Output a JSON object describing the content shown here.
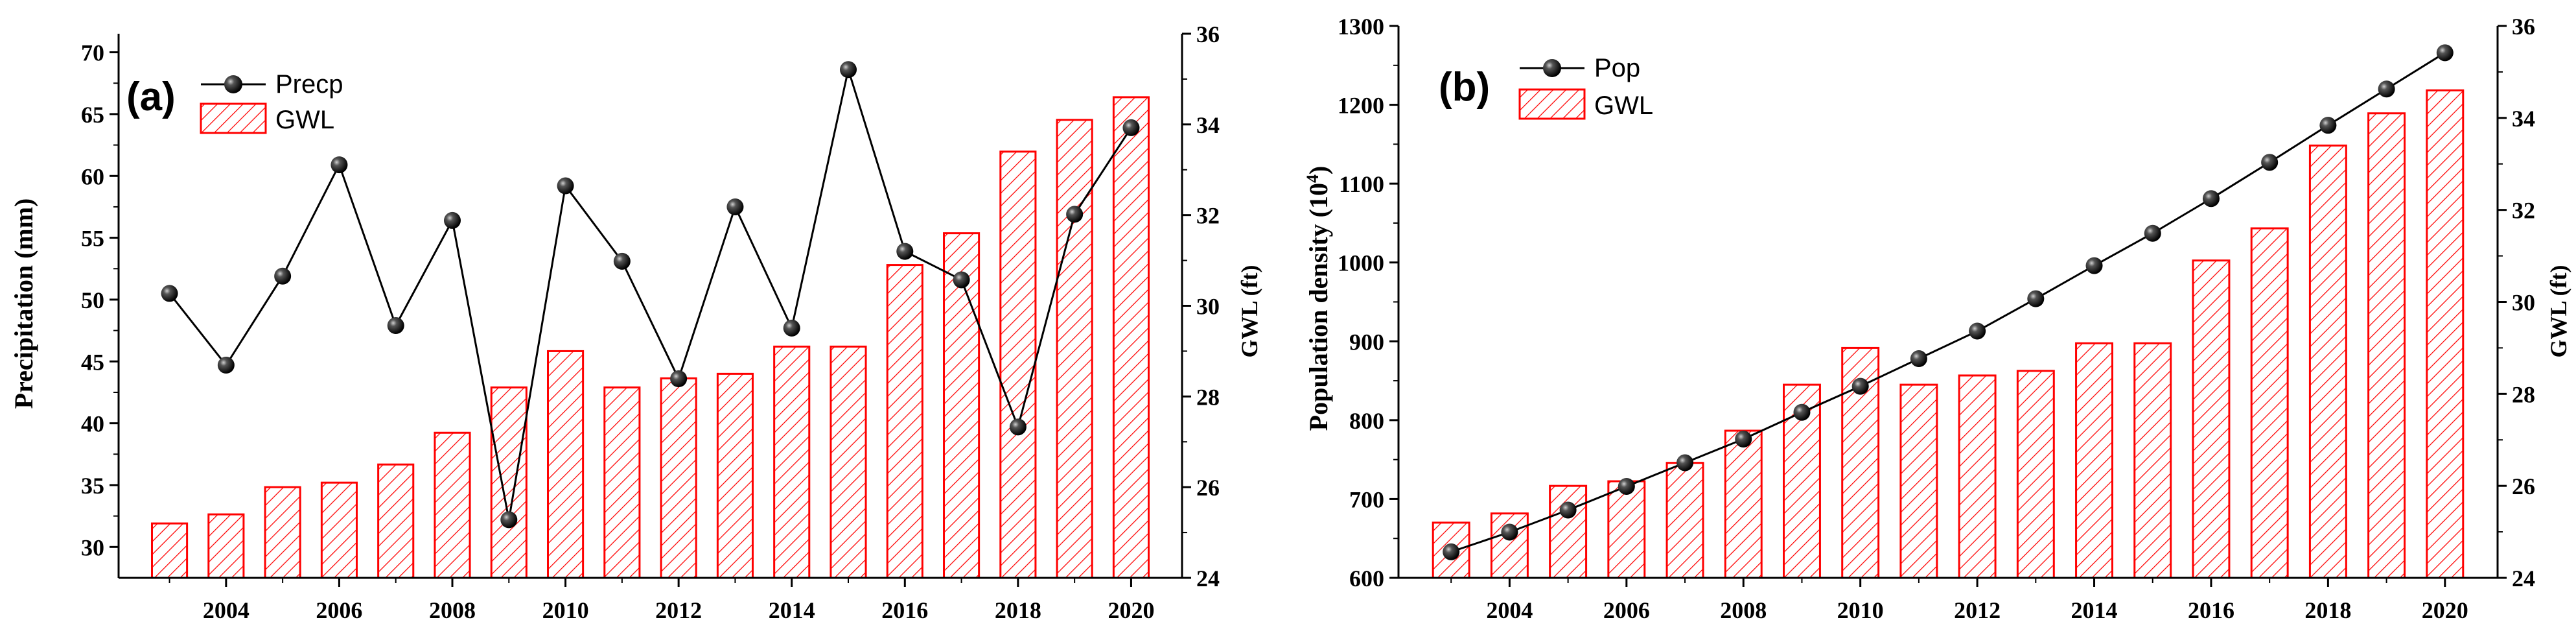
{
  "chart_data": [
    {
      "panel_label": "(a)",
      "type": "bar+line",
      "years": [
        2003,
        2004,
        2005,
        2006,
        2007,
        2008,
        2009,
        2010,
        2011,
        2012,
        2013,
        2014,
        2015,
        2016,
        2017,
        2018,
        2019,
        2020
      ],
      "line_series": {
        "name": "Precp",
        "values": [
          50.5,
          44.7,
          51.9,
          60.9,
          47.9,
          56.4,
          32.2,
          59.2,
          53.1,
          43.6,
          57.5,
          47.7,
          68.6,
          53.9,
          51.6,
          39.7,
          56.9,
          63.9
        ]
      },
      "bar_series": {
        "name": "GWL",
        "values": [
          25.2,
          25.4,
          26.0,
          26.1,
          26.5,
          27.2,
          28.2,
          29.0,
          28.2,
          28.4,
          28.5,
          29.1,
          29.1,
          30.9,
          31.6,
          33.4,
          34.1,
          34.6
        ]
      },
      "ylabel_left": "Precipitation (mm)",
      "ylabel_right": "GWL (ft)",
      "ylim_left": [
        27.5,
        71.5
      ],
      "ylim_right": [
        24,
        36
      ],
      "yticks_left": [
        "30",
        "35",
        "40",
        "45",
        "50",
        "55",
        "60",
        "65",
        "70"
      ],
      "yticks_right": [
        "24",
        "26",
        "28",
        "30",
        "32",
        "34",
        "36"
      ],
      "xticks": [
        "2004",
        "2006",
        "2008",
        "2010",
        "2012",
        "2014",
        "2016",
        "2018",
        "2020"
      ],
      "xlim": [
        2002.1,
        2020.9
      ]
    },
    {
      "panel_label": "(b)",
      "type": "bar+line",
      "years": [
        2003,
        2004,
        2005,
        2006,
        2007,
        2008,
        2009,
        2010,
        2011,
        2012,
        2013,
        2014,
        2015,
        2016,
        2017,
        2018,
        2019,
        2020
      ],
      "line_series": {
        "name": "Pop",
        "values": [
          633,
          658,
          686,
          716,
          746,
          776,
          810,
          843,
          878,
          913,
          954,
          996,
          1037,
          1081,
          1127,
          1174,
          1220,
          1266
        ]
      },
      "bar_series": {
        "name": "GWL",
        "values": [
          25.2,
          25.4,
          26.0,
          26.1,
          26.5,
          27.2,
          28.2,
          29.0,
          28.2,
          28.4,
          28.5,
          29.1,
          29.1,
          30.9,
          31.6,
          33.4,
          34.1,
          34.6
        ]
      },
      "ylabel_left": "Population density (10",
      "ylabel_left_sup": "4",
      "ylabel_left_end": ")",
      "ylabel_right": "GWL (ft)",
      "ylim_left": [
        600,
        1300
      ],
      "ylim_right": [
        24,
        36
      ],
      "yticks_left": [
        "600",
        "700",
        "800",
        "900",
        "1000",
        "1100",
        "1200",
        "1300"
      ],
      "yticks_right": [
        "24",
        "26",
        "28",
        "30",
        "32",
        "34",
        "36"
      ],
      "xticks": [
        "2004",
        "2006",
        "2008",
        "2010",
        "2012",
        "2014",
        "2016",
        "2018",
        "2020"
      ],
      "xlim": [
        2002.1,
        2020.9
      ]
    }
  ],
  "colors": {
    "bar_stroke": "#ff0000",
    "hatch": "#ff0000",
    "line": "#000000",
    "marker": "#000000"
  }
}
